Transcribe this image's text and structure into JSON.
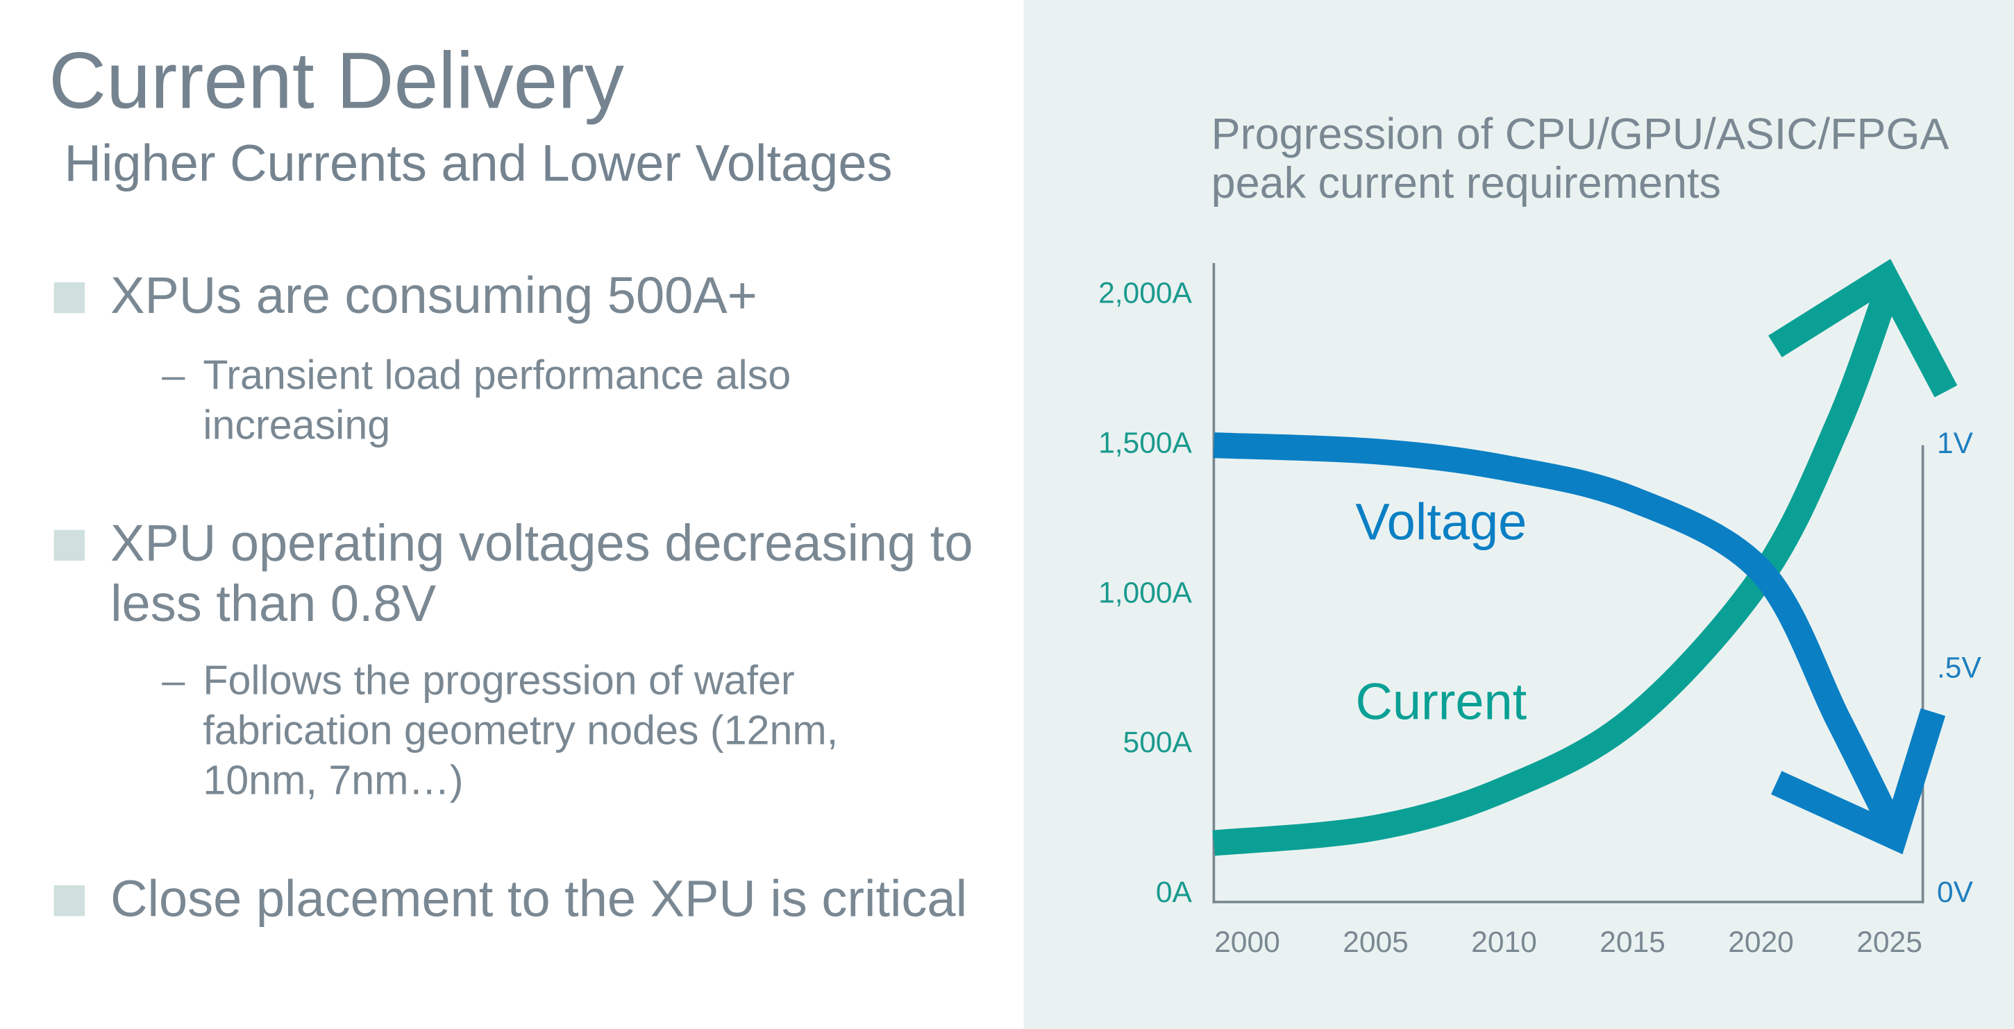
{
  "slide": {
    "title": "Current Delivery",
    "subtitle": "Higher Currents and Lower Voltages",
    "bullets": [
      {
        "text": "XPUs are consuming 500A+",
        "sub": [
          "Transient load performance also increasing"
        ]
      },
      {
        "text": "XPU operating voltages decreasing to less than 0.8V",
        "sub": [
          "Follows the progression of wafer fabrication geometry nodes (12nm, 10nm, 7nm…)"
        ]
      },
      {
        "text": "Close placement to the XPU is critical",
        "sub": []
      }
    ]
  },
  "chart_data": {
    "type": "line",
    "title": "Progression of CPU/GPU/ASIC/FPGA peak current requirements",
    "x": [
      1998.7,
      2005,
      2010,
      2015,
      2020,
      2023,
      2025
    ],
    "series": [
      {
        "name": "Current",
        "color": "#0aa095",
        "values": [
          171,
          222,
          350,
          585,
          1056,
          1568,
          2038
        ]
      },
      {
        "name": "Voltage",
        "color": "#0a7fc4",
        "axis": "y2",
        "values": [
          1.0,
          0.986,
          0.95,
          0.88,
          0.72,
          0.39,
          0.16
        ]
      }
    ],
    "xlim": [
      1998.7,
      2026.3
    ],
    "xticks": [
      2000,
      2005,
      2010,
      2015,
      2020,
      2025
    ],
    "ylim": [
      0,
      2000
    ],
    "yticks": [
      {
        "value": 0,
        "label": "0A"
      },
      {
        "value": 500,
        "label": "500A"
      },
      {
        "value": 1000,
        "label": "1,000A"
      },
      {
        "value": 1500,
        "label": "1,500A"
      },
      {
        "value": 2000,
        "label": "2,000A"
      }
    ],
    "y2lim": [
      0,
      1
    ],
    "y2ticks": [
      {
        "value": 0,
        "label": "0V"
      },
      {
        "value": 0.5,
        "label": ".5V"
      },
      {
        "value": 1,
        "label": "1V"
      }
    ]
  }
}
